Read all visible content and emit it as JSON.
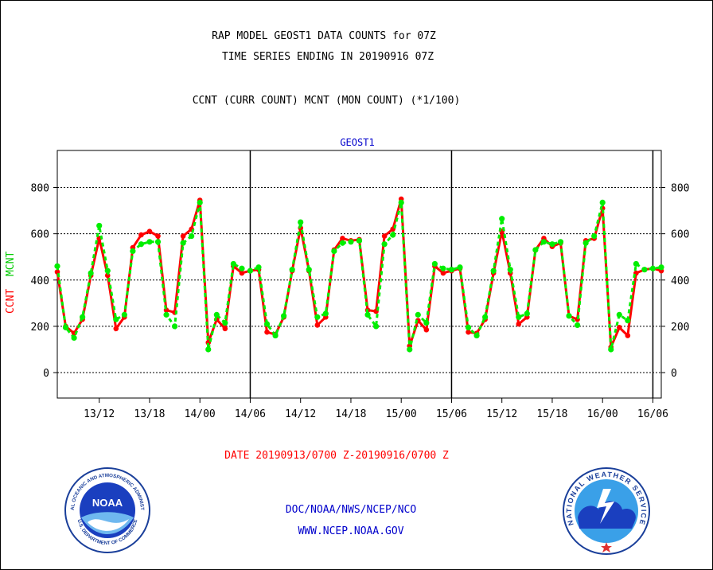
{
  "header": {
    "line1": "RAP MODEL GEOST1 DATA COUNTS for 07Z",
    "line2": "TIME SERIES ENDING IN 20190916 07Z",
    "line3": "CCNT (CURR COUNT) MCNT (MON COUNT) (*1/100)"
  },
  "footer": {
    "date_range": "DATE 20190913/0700 Z-20190916/0700 Z",
    "org": "DOC/NOAA/NWS/NCEP/NCO",
    "url": "WWW.NCEP.NOAA.GOV"
  },
  "colors": {
    "ccnt": "#ff0000",
    "mcnt": "#00ee00",
    "title": "#0000cc",
    "text": "#000000",
    "date": "#ff0000"
  },
  "logos": {
    "left": "noaa-logo",
    "left_text": "NOAA",
    "left_ring_top": "NATIONAL OCEANIC AND ATMOSPHERIC ADMINISTRATION",
    "left_ring_bottom": "U.S. DEPARTMENT OF COMMERCE",
    "right": "nws-logo",
    "right_ring": "NATIONAL WEATHER SERVICE"
  },
  "chart_data": {
    "type": "line",
    "title": "GEOST1",
    "ylabel_ccnt": "CCNT",
    "ylabel_mcnt": "MCNT",
    "ylim": [
      -110,
      960
    ],
    "yticks": [
      0,
      200,
      400,
      600,
      800
    ],
    "ytick_labels": [
      "0",
      "200",
      "400",
      "600",
      "800"
    ],
    "grid": true,
    "x_start_hour": 7,
    "x_end_hour": 79,
    "xticks": [
      12,
      18,
      24,
      30,
      36,
      42,
      48,
      54,
      60,
      66,
      72,
      78
    ],
    "xtick_labels": [
      "13/12",
      "13/18",
      "14/00",
      "14/06",
      "14/12",
      "14/18",
      "15/00",
      "15/06",
      "15/12",
      "15/18",
      "16/00",
      "16/06"
    ],
    "day_lines": [
      30,
      54,
      78
    ],
    "series": [
      {
        "name": "CCNT",
        "color": "#ff0000",
        "x": [
          7,
          8,
          9,
          10,
          11,
          12,
          13,
          14,
          15,
          16,
          17,
          18,
          19,
          20,
          21,
          22,
          23,
          24,
          25,
          26,
          27,
          28,
          29,
          30,
          31,
          32,
          33,
          34,
          35,
          36,
          37,
          38,
          39,
          40,
          41,
          42,
          43,
          44,
          45,
          46,
          47,
          48,
          49,
          50,
          51,
          52,
          53,
          54,
          55,
          56,
          57,
          58,
          59,
          60,
          61,
          62,
          63,
          64,
          65,
          66,
          67,
          68,
          69,
          70,
          71,
          72,
          73,
          74,
          75,
          76,
          77,
          78,
          79
        ],
        "values": [
          435,
          200,
          170,
          230,
          420,
          580,
          420,
          190,
          240,
          540,
          595,
          610,
          590,
          270,
          260,
          590,
          620,
          745,
          130,
          230,
          190,
          460,
          430,
          440,
          445,
          175,
          165,
          240,
          440,
          625,
          440,
          205,
          240,
          530,
          580,
          570,
          575,
          270,
          265,
          590,
          620,
          750,
          115,
          225,
          185,
          460,
          430,
          440,
          450,
          175,
          170,
          230,
          430,
          610,
          430,
          210,
          240,
          530,
          580,
          545,
          560,
          245,
          230,
          570,
          580,
          710,
          110,
          195,
          160,
          430,
          445,
          450,
          440
        ]
      },
      {
        "name": "MCNT",
        "color": "#00ee00",
        "x": [
          7,
          8,
          9,
          10,
          11,
          12,
          13,
          14,
          15,
          16,
          17,
          18,
          19,
          20,
          21,
          22,
          23,
          24,
          25,
          26,
          27,
          28,
          29,
          30,
          31,
          32,
          33,
          34,
          35,
          36,
          37,
          38,
          39,
          40,
          41,
          42,
          43,
          44,
          45,
          46,
          47,
          48,
          49,
          50,
          51,
          52,
          53,
          54,
          55,
          56,
          57,
          58,
          59,
          60,
          61,
          62,
          63,
          64,
          65,
          66,
          67,
          68,
          69,
          70,
          71,
          72,
          73,
          74,
          75,
          76,
          77,
          78,
          79
        ],
        "values": [
          460,
          195,
          150,
          240,
          430,
          635,
          440,
          230,
          250,
          525,
          555,
          565,
          565,
          250,
          200,
          560,
          590,
          735,
          100,
          250,
          215,
          470,
          450,
          440,
          455,
          210,
          160,
          245,
          445,
          650,
          445,
          240,
          255,
          525,
          560,
          565,
          570,
          250,
          200,
          555,
          595,
          735,
          100,
          250,
          215,
          470,
          450,
          445,
          455,
          195,
          160,
          240,
          440,
          665,
          445,
          240,
          255,
          530,
          565,
          555,
          565,
          245,
          205,
          560,
          590,
          735,
          100,
          250,
          225,
          470,
          445,
          450,
          455
        ]
      }
    ]
  }
}
